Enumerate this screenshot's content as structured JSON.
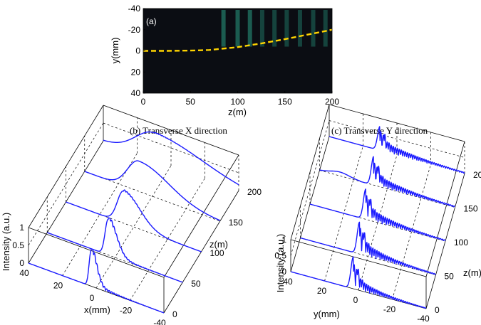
{
  "chart_data": [
    {
      "panel": "(a)",
      "type": "heatmap",
      "title": "",
      "xlabel": "z(m)",
      "ylabel": "y(mm)",
      "xlim": [
        0,
        200
      ],
      "ylim": [
        40,
        -40
      ],
      "xticks": [
        "0",
        "50",
        "100",
        "150",
        "200"
      ],
      "yticks": [
        "-40",
        "-20",
        "0",
        "20",
        "40"
      ],
      "colormap": "dark-teal-yellow",
      "overlay": {
        "style": "dashed",
        "color": "#ffd400",
        "z": [
          0,
          25,
          50,
          70,
          100,
          125,
          150,
          175,
          200
        ],
        "y": [
          0,
          0,
          0.3,
          0.8,
          3.5,
          7,
          11,
          15.5,
          20
        ]
      },
      "fringes_z": [
        85,
        100,
        113,
        126,
        139,
        152,
        166,
        180,
        193
      ]
    },
    {
      "panel": "(b)",
      "type": "line",
      "title": "(b)  Transverse X direction",
      "xlabel": "x(mm)",
      "ylabel": "Intensity (a.u.)",
      "zlabel": "z(m)",
      "xlim": [
        40,
        -40
      ],
      "zlim": [
        0,
        200
      ],
      "intensity_lim": [
        0,
        1
      ],
      "xticks": [
        "40",
        "20",
        "0",
        "-20",
        "-40"
      ],
      "zticks": [
        "0",
        "50",
        "100",
        "150",
        "200"
      ],
      "intensity_ticks": [
        "0",
        "0.5",
        "1"
      ],
      "series": [
        {
          "z": 0,
          "peak_x": 3,
          "width_mm": 2,
          "ripple": 0.35,
          "peak": 1.0
        },
        {
          "z": 50,
          "peak_x": 4,
          "width_mm": 3,
          "ripple": 0.25,
          "peak": 1.0
        },
        {
          "z": 100,
          "peak_x": 6,
          "width_mm": 6,
          "ripple": 0.1,
          "peak": 0.9
        },
        {
          "z": 150,
          "peak_x": 8,
          "width_mm": 11,
          "ripple": 0.0,
          "peak": 0.85
        },
        {
          "z": 200,
          "peak_x": 10,
          "width_mm": 18,
          "ripple": 0.05,
          "peak": 0.75
        }
      ]
    },
    {
      "panel": "(c)",
      "type": "line",
      "title": "(c)  Transverse Y direction",
      "xlabel": "y(mm)",
      "ylabel": "Intensity (a.u.)",
      "zlabel": "z(m)",
      "xlim": [
        40,
        -40
      ],
      "zlim": [
        0,
        200
      ],
      "intensity_lim": [
        0,
        1
      ],
      "xticks": [
        "40",
        "20",
        "0",
        "-20",
        "-40"
      ],
      "zticks": [
        "0",
        "50",
        "100",
        "150",
        "200"
      ],
      "intensity_ticks": [
        "0",
        "0.5",
        "1"
      ],
      "series": [
        {
          "z": 0,
          "peak_y": 3,
          "ripple": 0.45,
          "peak": 1.0
        },
        {
          "z": 50,
          "peak_y": 5,
          "ripple": 0.5,
          "peak": 1.0
        },
        {
          "z": 100,
          "peak_y": 7,
          "ripple": 0.45,
          "peak": 0.95
        },
        {
          "z": 150,
          "peak_y": 8,
          "ripple": 0.4,
          "peak": 0.9
        },
        {
          "z": 200,
          "peak_y": 10,
          "ripple": 0.35,
          "peak": 0.75
        }
      ]
    }
  ]
}
